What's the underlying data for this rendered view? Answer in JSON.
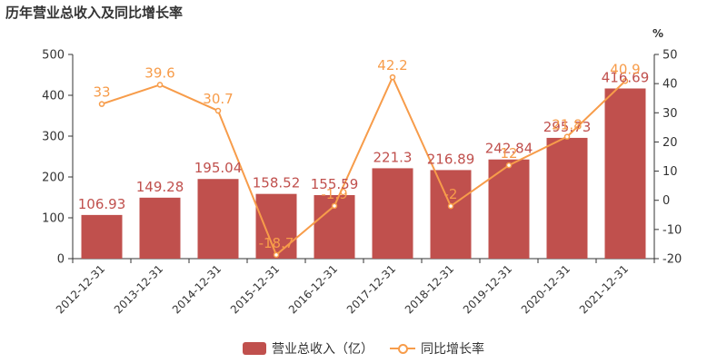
{
  "title": "历年营业总收入及同比增长率",
  "colors": {
    "bar": "#c0504d",
    "line": "#f79c4a",
    "axis": "#333333",
    "bar_label": "#c0504d",
    "line_label": "#f79c4a"
  },
  "chart_data": {
    "type": "bar",
    "title": "历年营业总收入及同比增长率",
    "categories": [
      "2012-12-31",
      "2013-12-31",
      "2014-12-31",
      "2015-12-31",
      "2016-12-31",
      "2017-12-31",
      "2018-12-31",
      "2019-12-31",
      "2020-12-31",
      "2021-12-31"
    ],
    "series": [
      {
        "name": "营业总收入（亿）",
        "type": "bar",
        "axis": "left",
        "values": [
          106.93,
          149.28,
          195.04,
          158.52,
          155.59,
          221.3,
          216.89,
          242.84,
          295.73,
          416.69
        ]
      },
      {
        "name": "同比增长率",
        "type": "line",
        "axis": "right",
        "values": [
          33,
          39.6,
          30.7,
          -18.7,
          -1.9,
          42.2,
          -2,
          12,
          21.8,
          40.9
        ]
      }
    ],
    "y_left": {
      "min": 0,
      "max": 500,
      "ticks": [
        0,
        100,
        200,
        300,
        400,
        500
      ]
    },
    "y_right": {
      "label": "%",
      "min": -20,
      "max": 50,
      "ticks": [
        -20,
        -10,
        0,
        10,
        20,
        30,
        40,
        50
      ]
    },
    "grid": false,
    "legend": "bottom-center"
  }
}
